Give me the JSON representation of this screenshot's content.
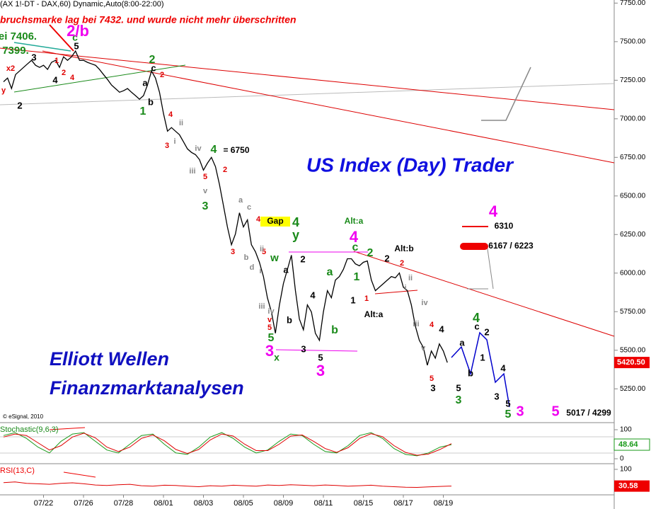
{
  "chart_data": [
    {
      "type": "line",
      "header": "(AX 1!-DT - DAX,60) Dynamic,Auto(8:00-22:00)",
      "note": "bruchsmarke lag bei 7432. und wurde nicht mehr überschritten",
      "title": "US Index (Day) Trader",
      "brand": [
        "Elliott Wellen",
        "Finanzmarktanalysen"
      ],
      "copyright": "© eSignal, 2010",
      "categories": [
        null,
        null,
        null,
        null,
        null,
        null,
        null,
        null,
        null,
        null,
        "07/22",
        null,
        null,
        null,
        null,
        null,
        null,
        null,
        null,
        null,
        "07/26",
        null,
        null,
        null,
        null,
        null,
        null,
        null,
        null,
        null,
        "07/28",
        null,
        null,
        null,
        null,
        null,
        null,
        null,
        null,
        null,
        "08/01",
        null,
        null,
        null,
        null,
        null,
        null,
        null,
        null,
        null,
        "08/03",
        null,
        null,
        null,
        null,
        null,
        null,
        null,
        null,
        null,
        "08/05",
        null,
        null,
        null,
        null,
        null,
        null,
        null,
        null,
        null,
        "08/09",
        null,
        null,
        null,
        null,
        null,
        null,
        null,
        null,
        null,
        "08/11",
        null,
        null,
        null,
        null,
        null,
        null,
        null,
        null,
        null,
        "08/15",
        null,
        null,
        null,
        null,
        null,
        null,
        null,
        null,
        null,
        "08/17",
        null,
        null,
        null,
        null,
        null,
        null,
        null,
        null,
        null,
        "08/19",
        null
      ],
      "series": [
        {
          "color": "#000000",
          "values": [
            7240,
            7264,
            7196,
            7287,
            7310,
            7333,
            7356,
            7379,
            7347,
            7333,
            7347,
            7320,
            7366,
            7379,
            7333,
            7402,
            7379,
            7402,
            7439,
            7379,
            7379,
            7366,
            7356,
            7347,
            7320,
            7287,
            7255,
            7219,
            7196,
            7172,
            7182,
            7196,
            7172,
            7150,
            7127,
            7150,
            7219,
            7310,
            7264,
            7172,
            7035,
            6920,
            6943,
            6920,
            6897,
            6851,
            6805,
            6782,
            6768,
            6736,
            6667,
            6713,
            6750,
            6690,
            6575,
            6437,
            6299,
            6184,
            6253,
            6391,
            6299,
            6345,
            6184,
            6138,
            6070,
            5978,
            5840,
            5748,
            5610,
            5794,
            5932,
            6024,
            6116,
            5886,
            5702,
            5633,
            5794,
            5748,
            5610,
            5564,
            5748,
            5886,
            5840,
            5955,
            5978,
            6024,
            6093,
            6093,
            6060,
            6047,
            6070,
            6079,
            5955,
            5886,
            5909,
            5932,
            5955,
            5978,
            5969,
            6001,
            5909,
            5886,
            5794,
            5656,
            5564,
            5518,
            5403,
            5495,
            5449,
            5541,
            5495,
            5420.5
          ]
        }
      ],
      "ylim": [
        5040,
        7770
      ],
      "yticks": [
        {
          "value": 7750,
          "label": "7750.00"
        },
        {
          "value": 7500,
          "label": "7500.00"
        },
        {
          "value": 7250,
          "label": "7250.00"
        },
        {
          "value": 7000,
          "label": "7000.00"
        },
        {
          "value": 6750,
          "label": "6750.00"
        },
        {
          "value": 6500,
          "label": "6500.00"
        },
        {
          "value": 6250,
          "label": "6250.00"
        },
        {
          "value": 6000,
          "label": "6000.00"
        },
        {
          "value": 5750,
          "label": "5750.00"
        },
        {
          "value": 5500,
          "label": "5500.00"
        },
        {
          "value": 5250,
          "label": "5250.00"
        }
      ],
      "last_price": {
        "value": 5420.5,
        "label": "5420.50"
      },
      "annotations": [
        "x2",
        "y",
        "3",
        "4",
        "1",
        "2",
        "4",
        "2",
        "c",
        "5",
        "2",
        "c",
        "2",
        "a",
        "b",
        "1",
        "4",
        "3",
        "i",
        "ii",
        "iv",
        "iii",
        "4",
        "= 6750",
        "2",
        "5",
        "v",
        "3",
        "a",
        "c",
        "b",
        "d",
        "3",
        "5",
        "4",
        "4",
        "y",
        "ii",
        "i",
        "iii",
        "iv",
        "w",
        "a",
        "b",
        "2",
        "4",
        "3",
        "5",
        "v",
        "5",
        "5",
        "3",
        "x",
        "3",
        "a",
        "b",
        "Alt:a",
        "4",
        "c",
        "2",
        "1",
        "2",
        "Alt:b",
        "2",
        "1",
        "1",
        "Alt:a",
        "ii",
        "i",
        "iv",
        "iii",
        "v",
        "4",
        "4",
        "5",
        "3",
        "a",
        "b",
        "4",
        "c",
        "2",
        "1",
        "3",
        "4",
        "5",
        "3",
        "5",
        "5",
        "3",
        "2/b",
        "ei 7406.",
        "7399.",
        "4",
        "6310",
        "6167 / 6223",
        "5",
        "5017 / 4299",
        "Gap"
      ]
    },
    {
      "type": "line",
      "title": "Stochastic(9,6,3)",
      "series": [
        {
          "color": "#1a9a1a",
          "values": [
            80,
            90,
            70,
            40,
            20,
            60,
            85,
            90,
            60,
            30,
            20,
            50,
            80,
            85,
            50,
            20,
            15,
            40,
            75,
            90,
            70,
            40,
            20,
            30,
            60,
            85,
            80,
            50,
            25,
            20,
            45,
            80,
            90,
            70,
            35,
            15,
            10,
            20,
            40,
            48.64
          ]
        },
        {
          "color": "#e00000",
          "values": [
            75,
            85,
            80,
            55,
            30,
            45,
            75,
            88,
            72,
            40,
            25,
            40,
            70,
            82,
            62,
            32,
            18,
            32,
            65,
            85,
            78,
            50,
            28,
            28,
            50,
            78,
            82,
            60,
            35,
            22,
            38,
            70,
            86,
            76,
            45,
            22,
            12,
            16,
            32,
            52
          ]
        }
      ],
      "ylim": [
        0,
        100
      ],
      "yticks": [
        0,
        100
      ]
    },
    {
      "type": "line",
      "title": "RSI(13,C)",
      "series": [
        {
          "color": "#e00000",
          "values": [
            45,
            48,
            42,
            40,
            38,
            42,
            44,
            40,
            35,
            33,
            36,
            38,
            32,
            30,
            34,
            33,
            30,
            28,
            32,
            30,
            34,
            32,
            30,
            35,
            33,
            36,
            34,
            32,
            35,
            33,
            30,
            32,
            34,
            30,
            28,
            26,
            25,
            27,
            29,
            30.58
          ]
        }
      ],
      "ylim": [
        0,
        100
      ],
      "yticks": [
        100
      ]
    }
  ]
}
